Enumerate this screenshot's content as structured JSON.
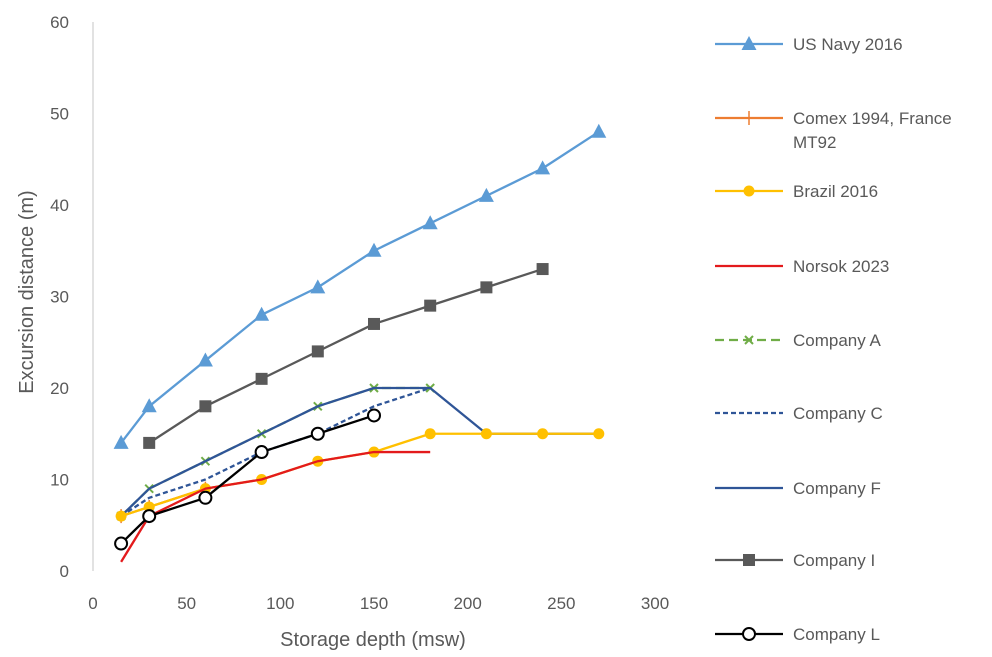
{
  "chart_data": {
    "type": "line",
    "xlabel": "Storage depth (msw)",
    "ylabel": "Excursion distance (m)",
    "xlim": [
      0,
      300
    ],
    "ylim": [
      0,
      60
    ],
    "xticks": [
      0,
      50,
      100,
      150,
      200,
      250,
      300
    ],
    "yticks": [
      0,
      10,
      20,
      30,
      40,
      50,
      60
    ],
    "grid": false,
    "legend_position": "right",
    "series": [
      {
        "name": "US Navy 2016",
        "color": "#5B9BD5",
        "dash": "solid",
        "marker": "triangle",
        "points": [
          [
            15,
            14
          ],
          [
            30,
            18
          ],
          [
            60,
            23
          ],
          [
            90,
            28
          ],
          [
            120,
            31
          ],
          [
            150,
            35
          ],
          [
            180,
            38
          ],
          [
            210,
            41
          ],
          [
            240,
            44
          ],
          [
            270,
            48
          ]
        ]
      },
      {
        "name": "Comex 1994, France MT92",
        "color": "#ED7D31",
        "dash": "solid",
        "marker": "plus",
        "points": [
          [
            15,
            6
          ],
          [
            30,
            7
          ],
          [
            60,
            9
          ]
        ]
      },
      {
        "name": "Brazil 2016",
        "color": "#FFC000",
        "dash": "solid",
        "marker": "circle-filled",
        "points": [
          [
            15,
            6
          ],
          [
            30,
            7
          ],
          [
            60,
            9
          ],
          [
            90,
            10
          ],
          [
            120,
            12
          ],
          [
            150,
            13
          ],
          [
            180,
            15
          ],
          [
            210,
            15
          ],
          [
            240,
            15
          ],
          [
            270,
            15
          ]
        ]
      },
      {
        "name": "Norsok 2023",
        "color": "#E31A1C",
        "dash": "solid",
        "marker": "none",
        "points": [
          [
            15,
            1
          ],
          [
            30,
            6
          ],
          [
            60,
            9
          ],
          [
            90,
            10
          ],
          [
            120,
            12
          ],
          [
            150,
            13
          ],
          [
            180,
            13
          ]
        ]
      },
      {
        "name": "Company A",
        "color": "#70AD47",
        "dash": "dashed",
        "marker": "x",
        "points": [
          [
            15,
            6
          ],
          [
            30,
            9
          ],
          [
            60,
            12
          ],
          [
            90,
            15
          ],
          [
            120,
            18
          ],
          [
            150,
            20
          ],
          [
            180,
            20
          ]
        ]
      },
      {
        "name": "Company C",
        "color": "#2F5597",
        "dash": "dotted",
        "marker": "none",
        "points": [
          [
            15,
            6
          ],
          [
            30,
            8
          ],
          [
            60,
            10
          ],
          [
            90,
            13
          ],
          [
            120,
            15
          ],
          [
            150,
            18
          ],
          [
            180,
            20
          ]
        ]
      },
      {
        "name": "Company F",
        "color": "#2F5597",
        "dash": "solid",
        "marker": "none",
        "points": [
          [
            15,
            6
          ],
          [
            30,
            9
          ],
          [
            60,
            12
          ],
          [
            90,
            15
          ],
          [
            120,
            18
          ],
          [
            150,
            20
          ],
          [
            180,
            20
          ],
          [
            210,
            15
          ],
          [
            240,
            15
          ],
          [
            270,
            15
          ]
        ]
      },
      {
        "name": "Company I",
        "color": "#595959",
        "dash": "solid",
        "marker": "square",
        "points": [
          [
            30,
            14
          ],
          [
            60,
            18
          ],
          [
            90,
            21
          ],
          [
            120,
            24
          ],
          [
            150,
            27
          ],
          [
            180,
            29
          ],
          [
            210,
            31
          ],
          [
            240,
            33
          ]
        ]
      },
      {
        "name": "Company L",
        "color": "#000000",
        "dash": "solid",
        "marker": "circle-open",
        "points": [
          [
            15,
            3
          ],
          [
            30,
            6
          ],
          [
            60,
            8
          ],
          [
            90,
            13
          ],
          [
            120,
            15
          ],
          [
            150,
            17
          ]
        ]
      }
    ]
  }
}
